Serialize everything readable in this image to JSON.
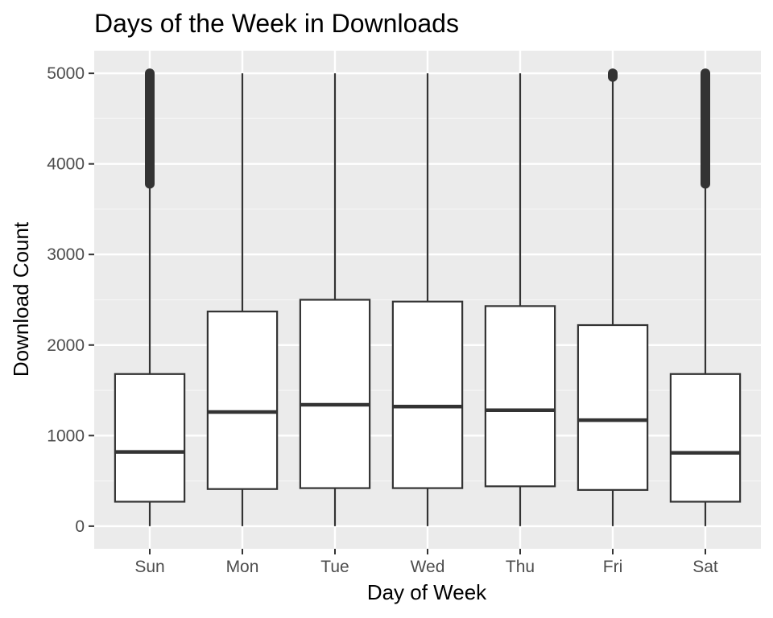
{
  "chart_data": {
    "type": "boxplot",
    "title": "Days of the Week in Downloads",
    "xlabel": "Day of Week",
    "ylabel": "Download Count",
    "ylim": [
      -250,
      5250
    ],
    "yticks": [
      0,
      1000,
      2000,
      3000,
      4000,
      5000
    ],
    "grid": true,
    "legend": "none",
    "categories": [
      "Sun",
      "Mon",
      "Tue",
      "Wed",
      "Thu",
      "Fri",
      "Sat"
    ],
    "boxes": [
      {
        "category": "Sun",
        "whisker_low": 0,
        "q1": 270,
        "median": 820,
        "q3": 1680,
        "whisker_high": 3780,
        "outliers_from": 3780,
        "outliers_to": 5000
      },
      {
        "category": "Mon",
        "whisker_low": 0,
        "q1": 410,
        "median": 1260,
        "q3": 2370,
        "whisker_high": 5000
      },
      {
        "category": "Tue",
        "whisker_low": 0,
        "q1": 420,
        "median": 1340,
        "q3": 2500,
        "whisker_high": 5000
      },
      {
        "category": "Wed",
        "whisker_low": 0,
        "q1": 420,
        "median": 1320,
        "q3": 2480,
        "whisker_high": 5000
      },
      {
        "category": "Thu",
        "whisker_low": 0,
        "q1": 440,
        "median": 1280,
        "q3": 2430,
        "whisker_high": 5000
      },
      {
        "category": "Fri",
        "whisker_low": 0,
        "q1": 400,
        "median": 1170,
        "q3": 2220,
        "whisker_high": 4960,
        "outliers_from": 4960,
        "outliers_to": 5000
      },
      {
        "category": "Sat",
        "whisker_low": 0,
        "q1": 270,
        "median": 810,
        "q3": 1680,
        "whisker_high": 3780,
        "outliers_from": 3780,
        "outliers_to": 5000
      }
    ],
    "colors": {
      "panel": "#ebebeb",
      "grid_major": "#ffffff",
      "grid_minor": "#f5f5f5",
      "box_fill": "#ffffff",
      "box_line": "#333333",
      "tick_text": "#4d4d4d"
    }
  }
}
